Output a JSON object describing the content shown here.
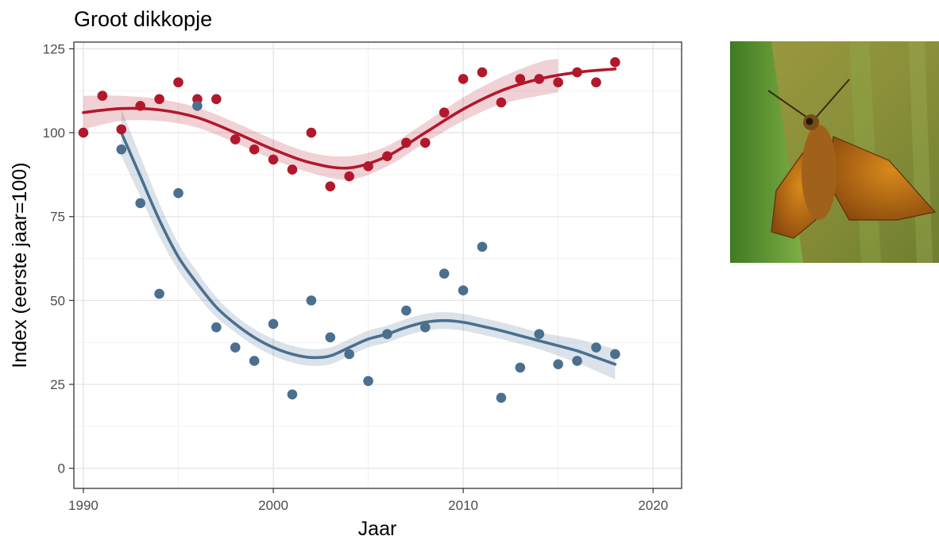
{
  "chart_data": {
    "type": "scatter",
    "title": "Groot dikkopje",
    "xlabel": "Jaar",
    "ylabel": "Index (eerste jaar=100)",
    "xlim": [
      1989.5,
      2021.5
    ],
    "ylim": [
      -6,
      127
    ],
    "xticks": [
      1990,
      2000,
      2010,
      2020
    ],
    "yticks": [
      0,
      25,
      50,
      75,
      100,
      125
    ],
    "grid": true,
    "legend": "none",
    "series": [
      {
        "color": "#b2182b",
        "points": [
          [
            1990,
            100
          ],
          [
            1991,
            111
          ],
          [
            1992,
            101
          ],
          [
            1993,
            108
          ],
          [
            1994,
            110
          ],
          [
            1995,
            115
          ],
          [
            1996,
            110
          ],
          [
            1997,
            110
          ],
          [
            1998,
            98
          ],
          [
            1999,
            95
          ],
          [
            2000,
            92
          ],
          [
            2001,
            89
          ],
          [
            2002,
            100
          ],
          [
            2003,
            84
          ],
          [
            2004,
            87
          ],
          [
            2005,
            90
          ],
          [
            2006,
            93
          ],
          [
            2007,
            97
          ],
          [
            2008,
            97
          ],
          [
            2009,
            106
          ],
          [
            2010,
            116
          ],
          [
            2011,
            118
          ],
          [
            2012,
            109
          ],
          [
            2013,
            116
          ],
          [
            2014,
            116
          ],
          [
            2015,
            115
          ],
          [
            2016,
            118
          ],
          [
            2017,
            115
          ],
          [
            2018,
            121
          ]
        ],
        "trend": [
          [
            1990,
            106
          ],
          [
            1992,
            107.2
          ],
          [
            1994,
            106.8
          ],
          [
            1996,
            104.5
          ],
          [
            1998,
            100
          ],
          [
            2000,
            95
          ],
          [
            2002,
            91
          ],
          [
            2004,
            89.5
          ],
          [
            2006,
            93
          ],
          [
            2008,
            100
          ],
          [
            2010,
            107
          ],
          [
            2012,
            112.5
          ],
          [
            2014,
            116
          ],
          [
            2016,
            118
          ],
          [
            2018,
            119
          ]
        ],
        "band": [
          [
            1990,
            101,
            111
          ],
          [
            1992,
            103.5,
            111
          ],
          [
            1994,
            103.5,
            110
          ],
          [
            1996,
            101.5,
            107.5
          ],
          [
            1998,
            97,
            103
          ],
          [
            2000,
            92,
            98
          ],
          [
            2002,
            88,
            94
          ],
          [
            2004,
            86,
            93
          ],
          [
            2006,
            90,
            96
          ],
          [
            2008,
            97,
            103
          ],
          [
            2010,
            103.5,
            110.5
          ],
          [
            2012,
            108.5,
            116.5
          ],
          [
            2014,
            111,
            121
          ],
          [
            2015,
            112,
            122
          ]
        ]
      },
      {
        "color": "#4a6f8f",
        "points": [
          [
            1992,
            95
          ],
          [
            1993,
            79
          ],
          [
            1994,
            52
          ],
          [
            1995,
            82
          ],
          [
            1996,
            108
          ],
          [
            1997,
            42
          ],
          [
            1998,
            36
          ],
          [
            1999,
            32
          ],
          [
            2000,
            43
          ],
          [
            2001,
            22
          ],
          [
            2002,
            50
          ],
          [
            2003,
            39
          ],
          [
            2004,
            34
          ],
          [
            2005,
            26
          ],
          [
            2006,
            40
          ],
          [
            2007,
            47
          ],
          [
            2008,
            42
          ],
          [
            2009,
            58
          ],
          [
            2010,
            53
          ],
          [
            2011,
            66
          ],
          [
            2012,
            21
          ],
          [
            2013,
            30
          ],
          [
            2014,
            40
          ],
          [
            2015,
            31
          ],
          [
            2016,
            32
          ],
          [
            2017,
            36
          ],
          [
            2018,
            34
          ]
        ],
        "trend": [
          [
            1992,
            100
          ],
          [
            1993,
            87
          ],
          [
            1994,
            74
          ],
          [
            1995,
            63
          ],
          [
            1996,
            55
          ],
          [
            1997,
            48
          ],
          [
            1998,
            43
          ],
          [
            1999,
            39
          ],
          [
            2000,
            36
          ],
          [
            2001,
            34
          ],
          [
            2002,
            33
          ],
          [
            2003,
            33.5
          ],
          [
            2004,
            36
          ],
          [
            2005,
            38.5
          ],
          [
            2006,
            40
          ],
          [
            2007,
            42
          ],
          [
            2008,
            43.5
          ],
          [
            2009,
            44
          ],
          [
            2010,
            43.5
          ],
          [
            2011,
            42.3
          ],
          [
            2012,
            41
          ],
          [
            2013,
            39.5
          ],
          [
            2014,
            38
          ],
          [
            2015,
            36.5
          ],
          [
            2016,
            35
          ],
          [
            2017,
            33
          ],
          [
            2018,
            31
          ]
        ],
        "band": [
          [
            1992,
            93,
            107
          ],
          [
            1993,
            81,
            93
          ],
          [
            1994,
            69,
            79
          ],
          [
            1995,
            59,
            67
          ],
          [
            1996,
            51.5,
            58.5
          ],
          [
            1997,
            45,
            51
          ],
          [
            1998,
            40.5,
            45.5
          ],
          [
            1999,
            36.5,
            41.5
          ],
          [
            2000,
            33.5,
            38.5
          ],
          [
            2001,
            31.5,
            36.5
          ],
          [
            2002,
            30.5,
            35.5
          ],
          [
            2003,
            31,
            36
          ],
          [
            2004,
            33.5,
            38.5
          ],
          [
            2005,
            36,
            41
          ],
          [
            2006,
            37.5,
            42.5
          ],
          [
            2007,
            39.5,
            44.5
          ],
          [
            2008,
            41,
            46
          ],
          [
            2009,
            41.5,
            46.5
          ],
          [
            2010,
            41,
            46
          ],
          [
            2011,
            39.8,
            44.8
          ],
          [
            2012,
            38.5,
            43.5
          ],
          [
            2013,
            37,
            42
          ],
          [
            2014,
            35.5,
            40.5
          ],
          [
            2015,
            33.5,
            39.5
          ],
          [
            2016,
            31.5,
            38.5
          ],
          [
            2017,
            29,
            37
          ],
          [
            2018,
            26.5,
            35.5
          ]
        ]
      }
    ]
  },
  "photo": {
    "subject": "butterfly-photo"
  }
}
